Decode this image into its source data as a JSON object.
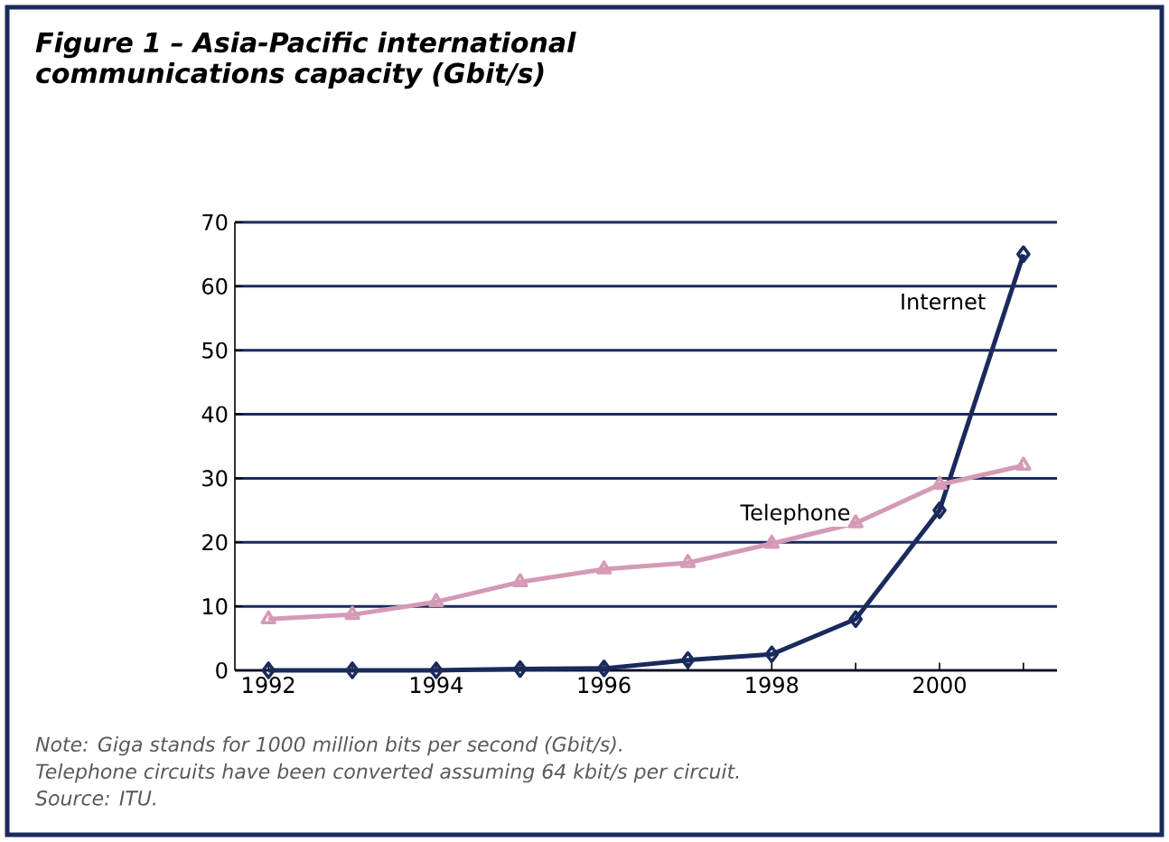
{
  "chart_data": {
    "type": "line",
    "title": "Figure 1 – Asia-Pacific international communications capacity (Gbit/s)",
    "categories": [
      "1992",
      null,
      "1994",
      null,
      "1996",
      null,
      "1998",
      null,
      "2000",
      null
    ],
    "series": [
      {
        "name": "Internet",
        "color": "#1b2a5c",
        "marker": "diamond",
        "values": [
          0,
          0,
          0,
          0.2,
          0.3,
          1.6,
          2.5,
          8,
          25,
          65
        ]
      },
      {
        "name": "Telephone",
        "color": "#d49ab5",
        "marker": "triangle",
        "values": [
          8,
          8.7,
          10.7,
          13.8,
          15.8,
          16.8,
          19.8,
          23,
          29,
          32
        ]
      }
    ],
    "ylim": [
      0,
      70
    ],
    "yticks": [
      0,
      10,
      20,
      30,
      40,
      50,
      60,
      70
    ],
    "grid": "y",
    "annotations": [
      "Note: Giga stands for 1000 million bits per second (Gbit/s).",
      "Telephone circuits have been converted assuming 64 kbit/s per circuit.",
      "Source: ITU."
    ]
  }
}
